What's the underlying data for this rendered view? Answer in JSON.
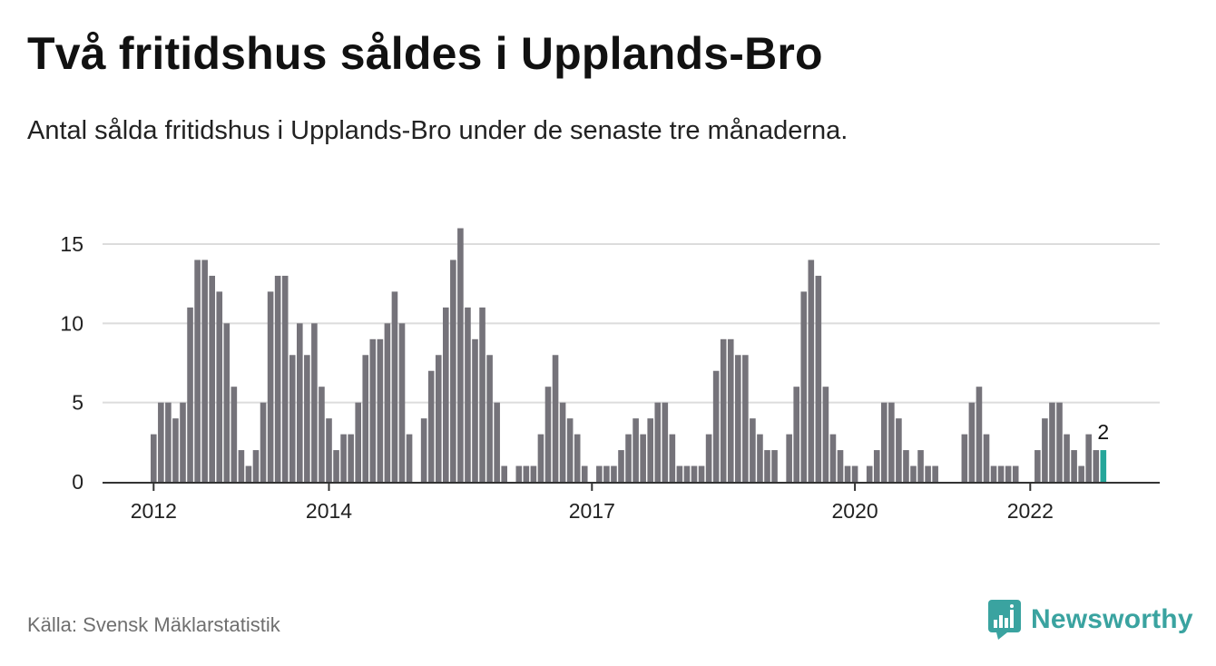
{
  "header": {
    "title": "Två fritidshus såldes i Upplands-Bro",
    "subtitle": "Antal sålda fritidshus i Upplands-Bro under de senaste tre månaderna."
  },
  "footer": {
    "source": "Källa: Svensk Mäklarstatistik",
    "brand": "Newsworthy"
  },
  "colors": {
    "bar": "#75737a",
    "highlight": "#26a69a",
    "grid": "#dcdcdc",
    "axis": "#333333",
    "brand": "#3aa3a0"
  },
  "chart_data": {
    "type": "bar",
    "title": "Två fritidshus såldes i Upplands-Bro",
    "subtitle": "Antal sålda fritidshus i Upplands-Bro under de senaste tre månaderna.",
    "xlabel": "",
    "ylabel": "",
    "ylim": [
      0,
      16
    ],
    "yticks": [
      0,
      5,
      10,
      15
    ],
    "grid": true,
    "x_tick_labels": [
      {
        "label": "2012",
        "index": 0
      },
      {
        "label": "2014",
        "index": 24
      },
      {
        "label": "2017",
        "index": 60
      },
      {
        "label": "2020",
        "index": 96
      },
      {
        "label": "2022",
        "index": 120
      }
    ],
    "values": [
      3,
      5,
      5,
      4,
      5,
      11,
      14,
      14,
      13,
      12,
      10,
      6,
      2,
      1,
      2,
      5,
      12,
      13,
      13,
      8,
      10,
      8,
      10,
      6,
      4,
      2,
      3,
      3,
      5,
      8,
      9,
      9,
      10,
      12,
      10,
      3,
      0,
      4,
      7,
      8,
      11,
      14,
      16,
      11,
      9,
      11,
      8,
      5,
      1,
      0,
      1,
      1,
      1,
      3,
      6,
      8,
      5,
      4,
      3,
      1,
      0,
      1,
      1,
      1,
      2,
      3,
      4,
      3,
      4,
      5,
      5,
      3,
      1,
      1,
      1,
      1,
      3,
      7,
      9,
      9,
      8,
      8,
      4,
      3,
      2,
      2,
      0,
      3,
      6,
      12,
      14,
      13,
      6,
      3,
      2,
      1,
      1,
      0,
      1,
      2,
      5,
      5,
      4,
      2,
      1,
      2,
      1,
      1,
      0,
      0,
      0,
      3,
      5,
      6,
      3,
      1,
      1,
      1,
      1,
      0,
      0,
      2,
      4,
      5,
      5,
      3,
      2,
      1,
      3,
      2,
      2
    ],
    "highlight_index": 130,
    "highlight_label": "2"
  }
}
